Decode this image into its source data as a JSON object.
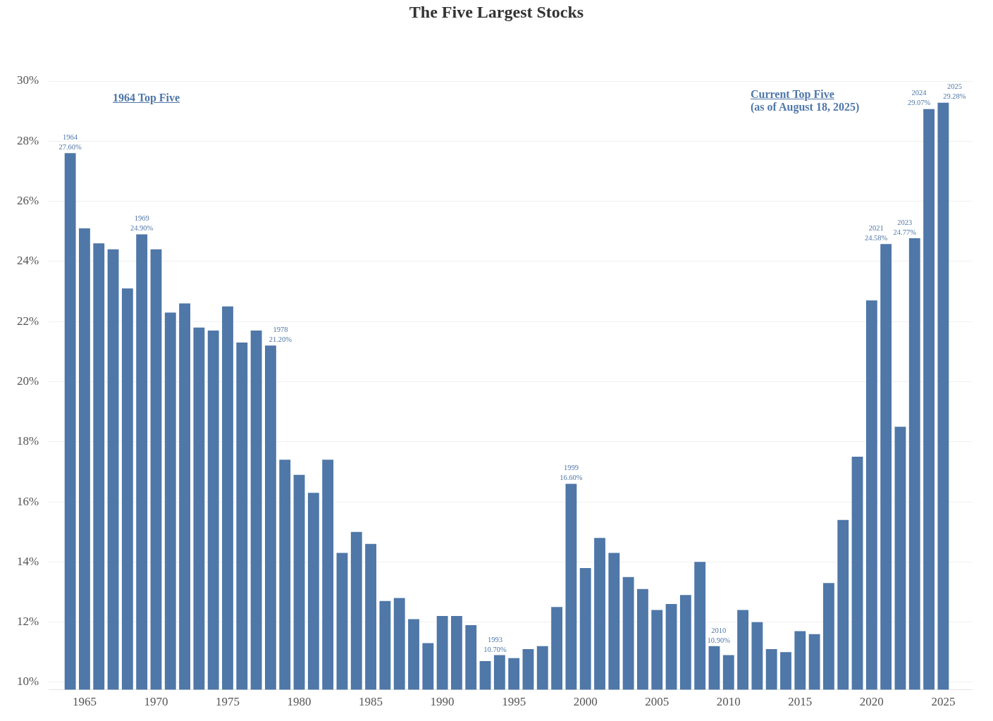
{
  "chart_data": {
    "type": "bar",
    "title": "The Five Largest Stocks",
    "x": [
      1964,
      1965,
      1966,
      1967,
      1968,
      1969,
      1970,
      1971,
      1972,
      1973,
      1974,
      1975,
      1976,
      1977,
      1978,
      1979,
      1980,
      1981,
      1982,
      1983,
      1984,
      1985,
      1986,
      1987,
      1988,
      1989,
      1990,
      1991,
      1992,
      1993,
      1994,
      1995,
      1996,
      1997,
      1998,
      1999,
      2000,
      2001,
      2002,
      2003,
      2004,
      2005,
      2006,
      2007,
      2008,
      2009,
      2010,
      2011,
      2012,
      2013,
      2014,
      2015,
      2016,
      2017,
      2018,
      2019,
      2020,
      2021,
      2022,
      2023,
      2024,
      2025
    ],
    "values": [
      27.6,
      25.1,
      24.6,
      24.4,
      23.1,
      24.9,
      24.4,
      22.3,
      22.6,
      21.8,
      21.7,
      22.5,
      21.3,
      21.7,
      21.2,
      17.4,
      16.9,
      16.3,
      17.4,
      14.3,
      15.0,
      14.6,
      12.7,
      12.8,
      12.1,
      11.3,
      12.2,
      12.2,
      11.9,
      10.7,
      10.9,
      10.8,
      11.1,
      11.2,
      12.5,
      16.6,
      13.8,
      14.8,
      14.3,
      13.5,
      13.1,
      12.4,
      12.6,
      12.9,
      14.0,
      11.2,
      10.9,
      12.4,
      12.0,
      11.1,
      11.0,
      11.7,
      11.6,
      13.3,
      15.4,
      17.5,
      22.7,
      24.58,
      18.5,
      24.77,
      29.07,
      29.28
    ],
    "value_labels": [
      "27.60%",
      null,
      null,
      null,
      null,
      "24.90%",
      null,
      null,
      null,
      null,
      null,
      null,
      null,
      null,
      "21.20%",
      null,
      null,
      null,
      null,
      null,
      null,
      null,
      null,
      null,
      null,
      null,
      null,
      null,
      null,
      "10.70%",
      null,
      null,
      null,
      null,
      null,
      "16.60%",
      null,
      null,
      null,
      null,
      null,
      null,
      null,
      null,
      null,
      null,
      "10.90%",
      null,
      null,
      null,
      null,
      null,
      null,
      null,
      null,
      null,
      null,
      "24.58%",
      null,
      "24.77%",
      "29.07%",
      "29.28%"
    ],
    "color": "#4f77a8",
    "xlim": [
      1962.5,
      2027
    ],
    "xticks": [
      1965,
      1970,
      1975,
      1980,
      1985,
      1990,
      1995,
      2000,
      2005,
      2010,
      2015,
      2020,
      2025
    ],
    "ylim": [
      9.75,
      30
    ],
    "yticks": [
      {
        "value": 10,
        "label": "10%"
      },
      {
        "value": 12,
        "label": "12%"
      },
      {
        "value": 14,
        "label": "14%"
      },
      {
        "value": 16,
        "label": "16%"
      },
      {
        "value": 18,
        "label": "18%"
      },
      {
        "value": 20,
        "label": "20%"
      },
      {
        "value": 22,
        "label": "22%"
      },
      {
        "value": 24,
        "label": "24%"
      },
      {
        "value": 26,
        "label": "26%"
      },
      {
        "value": 28,
        "label": "28%"
      },
      {
        "value": 30,
        "label": "30%"
      }
    ],
    "grid": "y",
    "annotations": [
      "1964 Top Five",
      "Current Top Five\n(as of August 18, 2025)",
      {
        "text": "1964",
        "x": 1964,
        "y": 27.6
      },
      {
        "text": "1969",
        "x": 1969,
        "y": 24.9
      },
      {
        "text": "1978",
        "x": 1978,
        "y": 21.2
      },
      {
        "text": "1993",
        "x": 1993,
        "y": 10.7
      },
      {
        "text": "1999",
        "x": 1999,
        "y": 16.6
      },
      {
        "text": "2010",
        "x": 2010,
        "y": 10.9
      },
      {
        "text": "2021",
        "x": 2021,
        "y": 24.58
      },
      {
        "text": "2023",
        "x": 2023,
        "y": 24.77
      },
      {
        "text": "2024",
        "x": 2024,
        "y": 29.07
      },
      {
        "text": "2025",
        "x": 2025,
        "y": 29.28
      }
    ]
  }
}
